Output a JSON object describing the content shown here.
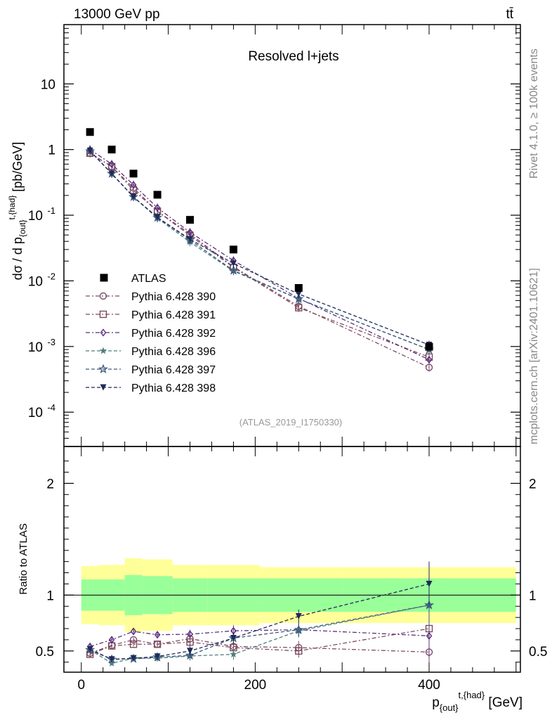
{
  "header": {
    "left": "13000 GeV pp",
    "right": "tt̄"
  },
  "side_text": {
    "rivet": "Rivet 4.1.0, ≥ 100k events",
    "mcplots": "mcplots.cern.ch [arXiv:2401.10621]"
  },
  "chart_data": {
    "main": {
      "type": "scatter",
      "title": "Resolved l+jets",
      "watermark": "(ATLAS_2019_I1750330)",
      "ylabel": "dσ / d p_{out}^{t,{had}} [pb/GeV]",
      "yscale": "log",
      "ylim": [
        3e-05,
        80
      ],
      "xlim": [
        -20,
        505
      ],
      "y_tick_labels": [
        "10",
        "1",
        "10^-1",
        "10^-2",
        "10^-3",
        "10^-4"
      ],
      "x": [
        10,
        35,
        60,
        87.5,
        125,
        175,
        250,
        400
      ],
      "bin_edges": [
        0,
        20,
        50,
        70,
        105,
        145,
        205,
        300,
        500
      ],
      "data": {
        "name": "ATLAS",
        "values": [
          1.85,
          1.0,
          0.43,
          0.205,
          0.085,
          0.03,
          0.0078,
          0.00099
        ]
      },
      "series": [
        {
          "name": "Pythia 6.428 390",
          "values": [
            0.88,
            0.55,
            0.26,
            0.115,
            0.052,
            0.0164,
            0.0041,
            0.00048
          ]
        },
        {
          "name": "Pythia 6.428 391",
          "values": [
            0.88,
            0.55,
            0.24,
            0.115,
            0.049,
            0.016,
            0.0039,
            0.00069
          ]
        },
        {
          "name": "Pythia 6.428 392",
          "values": [
            1.0,
            0.6,
            0.29,
            0.13,
            0.055,
            0.0204,
            0.0054,
            0.00063
          ]
        },
        {
          "name": "Pythia 6.428 396",
          "values": [
            0.95,
            0.43,
            0.19,
            0.09,
            0.039,
            0.0141,
            0.0053,
            0.0009
          ]
        },
        {
          "name": "Pythia 6.428 397",
          "values": [
            0.95,
            0.43,
            0.19,
            0.092,
            0.042,
            0.0144,
            0.0053,
            0.0009
          ]
        },
        {
          "name": "Pythia 6.428 398",
          "values": [
            0.96,
            0.43,
            0.19,
            0.093,
            0.043,
            0.0184,
            0.0063,
            0.00106
          ]
        }
      ]
    },
    "ratio": {
      "type": "line",
      "ylabel": "Ratio to ATLAS",
      "xlabel": "p_{out}^{t,{had}} [GeV]",
      "ylim": [
        0.31,
        2.33
      ],
      "y_tick_labels": [
        "2",
        "1",
        "0.5"
      ],
      "x_tick_labels": [
        "0",
        "200",
        "400"
      ],
      "band_inner": [
        0.14,
        0.14,
        0.18,
        0.17,
        0.15,
        0.15,
        0.15,
        0.15
      ],
      "band_outer": [
        0.26,
        0.27,
        0.33,
        0.32,
        0.27,
        0.27,
        0.25,
        0.25
      ],
      "series": [
        {
          "name": "Pythia 6.428 390",
          "values": [
            0.48,
            0.55,
            0.6,
            0.56,
            0.61,
            0.54,
            0.53,
            0.49
          ]
        },
        {
          "name": "Pythia 6.428 391",
          "values": [
            0.47,
            0.545,
            0.56,
            0.56,
            0.58,
            0.53,
            0.5,
            0.7
          ]
        },
        {
          "name": "Pythia 6.428 392",
          "values": [
            0.54,
            0.6,
            0.675,
            0.645,
            0.65,
            0.68,
            0.69,
            0.635
          ]
        },
        {
          "name": "Pythia 6.428 396",
          "values": [
            0.51,
            0.39,
            0.435,
            0.435,
            0.455,
            0.47,
            0.68,
            0.91
          ]
        },
        {
          "name": "Pythia 6.428 397",
          "values": [
            0.51,
            0.425,
            0.43,
            0.445,
            0.46,
            0.615,
            0.69,
            0.91
          ]
        },
        {
          "name": "Pythia 6.428 398",
          "values": [
            0.515,
            0.425,
            0.435,
            0.45,
            0.5,
            0.615,
            0.81,
            1.1
          ]
        }
      ]
    }
  },
  "legend_style": {
    "data_color": "#000000",
    "series": [
      {
        "color": "#7d4b6e",
        "marker": "circle",
        "dash": "dashdot"
      },
      {
        "color": "#7d4b5a",
        "marker": "square",
        "dash": "dashdot"
      },
      {
        "color": "#5a2d7d",
        "marker": "diamond",
        "dash": "dashdot"
      },
      {
        "color": "#4f7d7d",
        "marker": "star",
        "dash": "dashed"
      },
      {
        "color": "#3d5a7d",
        "marker": "star-open",
        "dash": "dashed"
      },
      {
        "color": "#1f2a5a",
        "marker": "triangle-down",
        "dash": "dashed"
      }
    ],
    "band_inner_color": "#99ff99",
    "band_outer_color": "#ffff99"
  }
}
